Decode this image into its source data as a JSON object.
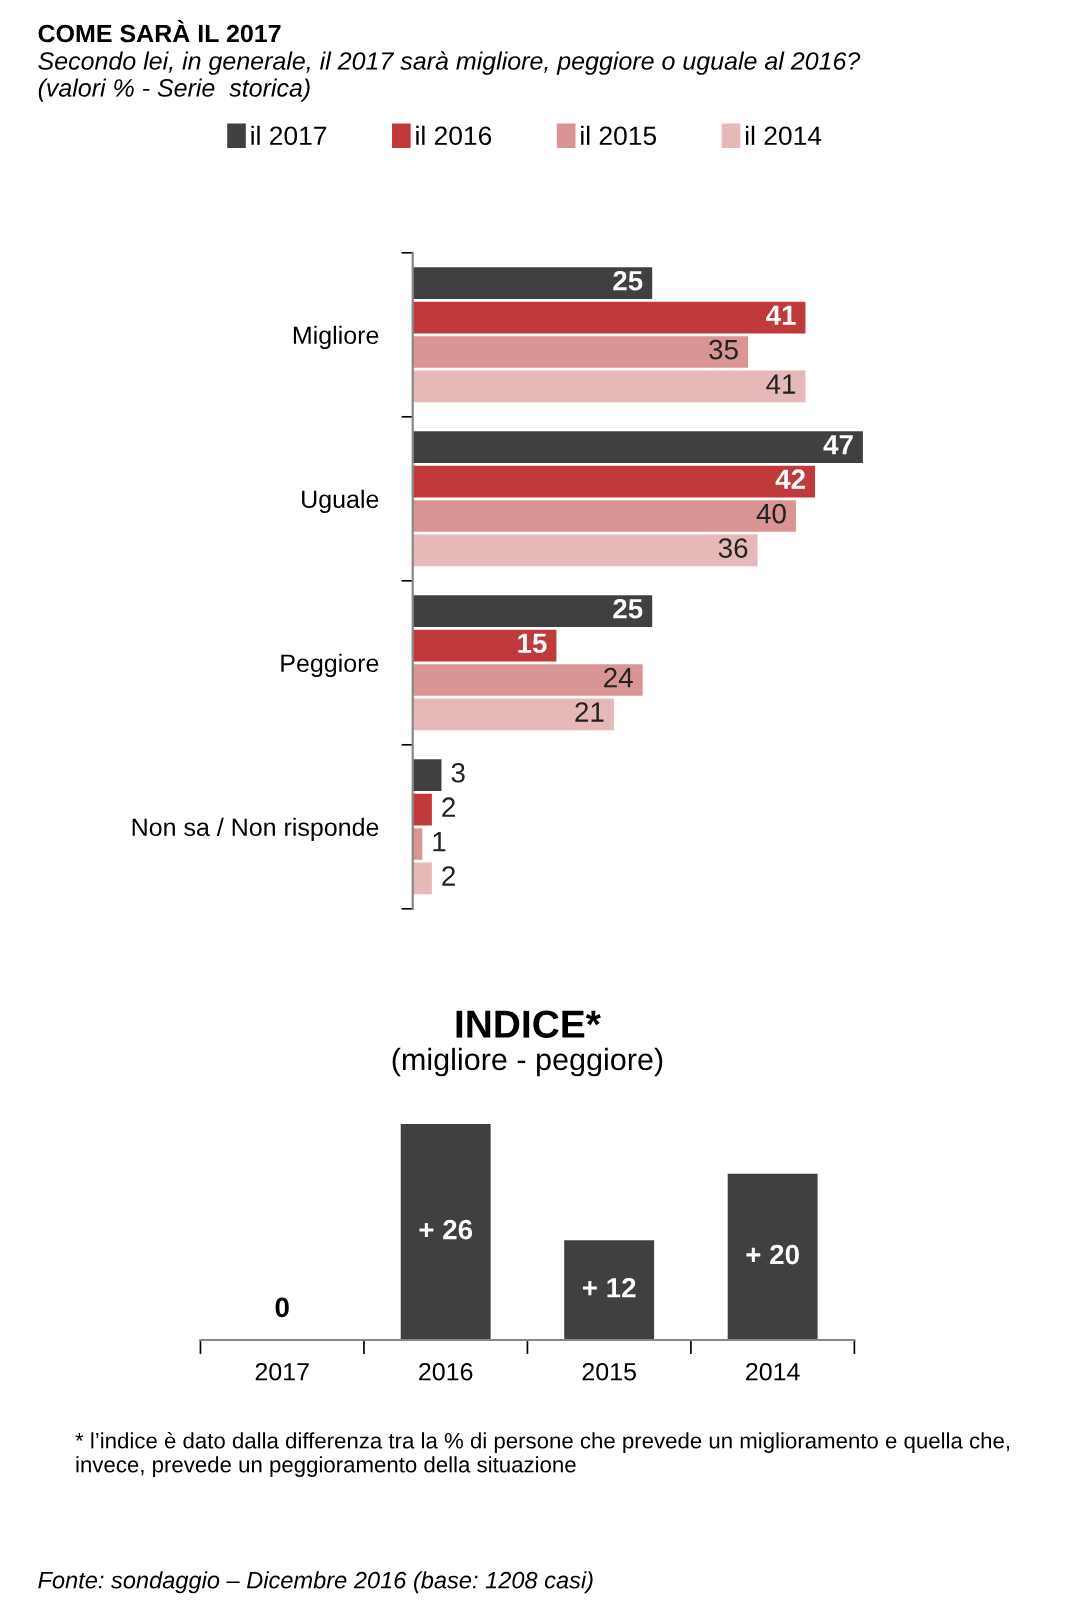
{
  "chart_data": [
    {
      "type": "bar",
      "orientation": "horizontal",
      "title": "COME SARÀ IL 2017",
      "subtitle": "Secondo lei, in generale, il 2017 sarà migliore, peggiore o uguale al 2016?\n(valori % - Serie  storica)",
      "categories": [
        "Migliore",
        "Uguale",
        "Peggiore",
        "Non sa / Non risponde"
      ],
      "series": [
        {
          "name": "il 2017",
          "color": "#404040",
          "values": [
            25,
            47,
            25,
            3
          ]
        },
        {
          "name": "il 2016",
          "color": "#c0393b",
          "values": [
            41,
            42,
            15,
            2
          ]
        },
        {
          "name": "il 2015",
          "color": "#d99594",
          "values": [
            35,
            40,
            24,
            1
          ]
        },
        {
          "name": "il 2014",
          "color": "#e6b9b8",
          "values": [
            41,
            36,
            21,
            2
          ]
        }
      ],
      "data_labels": true,
      "legend": "top",
      "grid": false
    },
    {
      "type": "bar",
      "title": "INDICE*",
      "subtitle": "(migliore - peggiore)",
      "categories": [
        "2017",
        "2016",
        "2015",
        "2014"
      ],
      "values": [
        0,
        26,
        12,
        20
      ],
      "value_labels": [
        "0",
        "+ 26",
        "+ 12",
        "+ 20"
      ],
      "color": "#404040",
      "grid": false,
      "annotations": [
        "* l’indice è dato dalla differenza tra la % di persone che prevede un miglioramento e quella che, invece, prevede un peggioramento della situazione",
        "Fonte: sondaggio – Dicembre 2016 (base: 1208 casi)"
      ]
    }
  ]
}
